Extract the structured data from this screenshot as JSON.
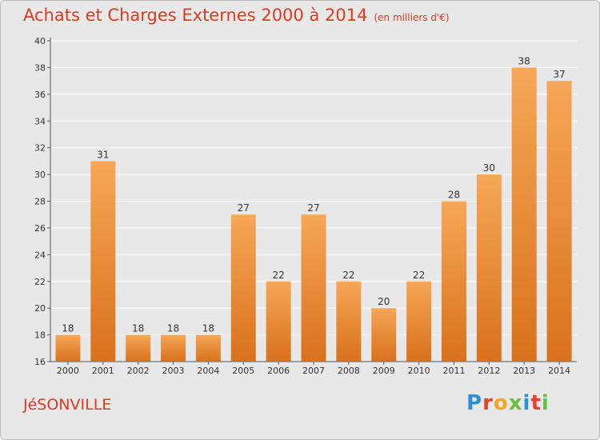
{
  "header": {
    "title": "Achats et Charges Externes 2000 à 2014",
    "subtitle": "(en milliers d'€)"
  },
  "footer": {
    "commune": "JéSONVILLE",
    "logo_letters": [
      {
        "char": "P",
        "color": "#2f8ed8"
      },
      {
        "char": "r",
        "color": "#e8402a"
      },
      {
        "char": "o",
        "color": "#f5a623"
      },
      {
        "char": "x",
        "color": "#6cbf3a"
      },
      {
        "char": "i",
        "color": "#2f8ed8"
      },
      {
        "char": "t",
        "color": "#e8402a"
      },
      {
        "char": "i",
        "color": "#6cbf3a"
      }
    ]
  },
  "colors": {
    "title": "#df3a1f",
    "bar_light": "#f6a757",
    "bar_dark": "#d9711c",
    "plot_bg": "#e8e8e8",
    "grid": "#ffffff"
  },
  "chart_data": {
    "type": "bar",
    "title": "Achats et Charges Externes 2000 à 2014",
    "subtitle": "(en milliers d'€)",
    "categories": [
      "2000",
      "2001",
      "2002",
      "2003",
      "2004",
      "2005",
      "2006",
      "2007",
      "2008",
      "2009",
      "2010",
      "2011",
      "2012",
      "2013",
      "2014"
    ],
    "values": [
      18,
      31,
      18,
      18,
      18,
      27,
      22,
      27,
      22,
      20,
      22,
      28,
      30,
      38,
      37
    ],
    "ylim": [
      16,
      40
    ],
    "yticks": [
      16,
      18,
      20,
      22,
      24,
      26,
      28,
      30,
      32,
      34,
      36,
      38,
      40
    ],
    "grid": true,
    "xlabel": "",
    "ylabel": ""
  }
}
